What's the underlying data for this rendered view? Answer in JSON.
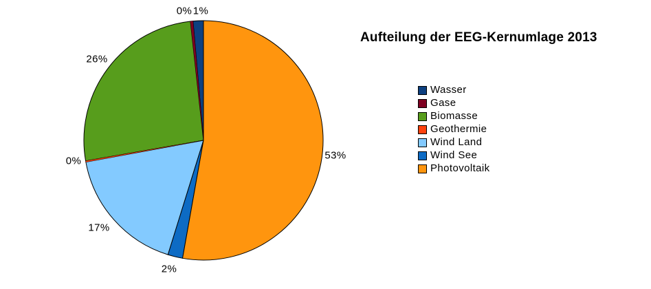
{
  "title": "Aufteilung der EEG-Kernumlage 2013",
  "background": "#FFFFFF",
  "text_color": "#000000",
  "chart_data": {
    "type": "pie",
    "title": "Aufteilung der EEG-Kernumlage 2013",
    "unit": "percent",
    "start_angle": "12-o-clock",
    "direction": "counterclockwise",
    "legend_position": "right",
    "outline_color": "#000000",
    "series": [
      {
        "name": "Wasser",
        "percent_label": "1%",
        "percent": 1,
        "render_pct": 1.4,
        "color": "#0D4080"
      },
      {
        "name": "Gase",
        "percent_label": "0%",
        "percent": 0,
        "render_pct": 0.35,
        "color": "#7E0021"
      },
      {
        "name": "Biomasse",
        "percent_label": "26%",
        "percent": 26,
        "render_pct": 26.0,
        "color": "#579D1C"
      },
      {
        "name": "Geothermie",
        "percent_label": "0%",
        "percent": 0,
        "render_pct": 0.15,
        "color": "#FF420E"
      },
      {
        "name": "Wind Land",
        "percent_label": "17%",
        "percent": 17,
        "render_pct": 17.3,
        "color": "#83CAFF"
      },
      {
        "name": "Wind See",
        "percent_label": "2%",
        "percent": 2,
        "render_pct": 2.0,
        "color": "#0D6BC4"
      },
      {
        "name": "Photovoltaik",
        "percent_label": "53%",
        "percent": 53,
        "render_pct": 52.8,
        "color": "#FF950E"
      }
    ]
  }
}
